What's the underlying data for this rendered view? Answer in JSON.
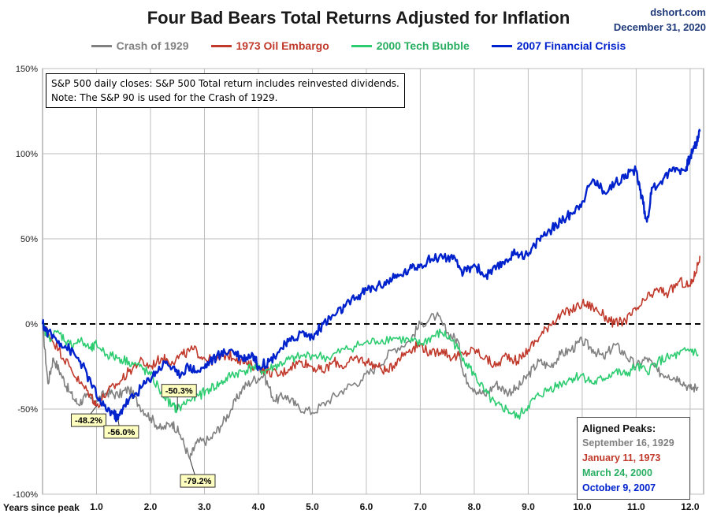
{
  "header": {
    "title": "Four Bad Bears Total Returns Adjusted for Inflation",
    "source": "dshort.com",
    "date": "December 31, 2020"
  },
  "note": {
    "line1": "S&P 500 daily closes: S&P 500 Total return includes reinvested dividends.",
    "line2": "Note: The S&P 90 is used for the Crash of 1929."
  },
  "peaks": {
    "title": "Aligned Peaks:",
    "items": [
      "September 16, 1929",
      "January 11, 1973",
      "March 24, 2000",
      "October 9, 2007"
    ]
  },
  "chart_data": {
    "type": "line",
    "title": "Four Bad Bears Total Returns Adjusted for Inflation",
    "xlabel": "Years since peak",
    "ylabel": "",
    "xlim": [
      0,
      12.25
    ],
    "ylim": [
      -100,
      150
    ],
    "x_ticks": [
      "1.0",
      "2.0",
      "3.0",
      "4.0",
      "5.0",
      "6.0",
      "7.0",
      "8.0",
      "9.0",
      "10.0",
      "11.0",
      "12.0"
    ],
    "y_ticks": [
      "150%",
      "100%",
      "50%",
      "0%",
      "-50%",
      "-100%"
    ],
    "y_tick_values": [
      150,
      100,
      50,
      0,
      -50,
      -100
    ],
    "grid": true,
    "legend_position": "top",
    "reference_line": 0,
    "series": [
      {
        "name": "Crash of 1929",
        "color": "#808080",
        "points": [
          [
            0,
            0
          ],
          [
            0.1,
            -35
          ],
          [
            0.2,
            -20
          ],
          [
            0.35,
            -30
          ],
          [
            0.5,
            -40
          ],
          [
            0.65,
            -47
          ],
          [
            0.8,
            -43
          ],
          [
            1.0,
            -45
          ],
          [
            1.2,
            -40
          ],
          [
            1.4,
            -42
          ],
          [
            1.6,
            -38
          ],
          [
            1.8,
            -48
          ],
          [
            2.0,
            -55
          ],
          [
            2.2,
            -62
          ],
          [
            2.4,
            -58
          ],
          [
            2.55,
            -65
          ],
          [
            2.73,
            -79.2
          ],
          [
            2.85,
            -70
          ],
          [
            3.1,
            -68
          ],
          [
            3.3,
            -60
          ],
          [
            3.5,
            -50
          ],
          [
            3.7,
            -38
          ],
          [
            3.9,
            -33
          ],
          [
            4.1,
            -30
          ],
          [
            4.3,
            -45
          ],
          [
            4.5,
            -42
          ],
          [
            4.7,
            -48
          ],
          [
            5.0,
            -52
          ],
          [
            5.3,
            -45
          ],
          [
            5.6,
            -38
          ],
          [
            5.9,
            -33
          ],
          [
            6.2,
            -25
          ],
          [
            6.5,
            -15
          ],
          [
            6.8,
            -10
          ],
          [
            7.0,
            0
          ],
          [
            7.3,
            5
          ],
          [
            7.5,
            -5
          ],
          [
            7.7,
            -10
          ],
          [
            7.8,
            -30
          ],
          [
            8.0,
            -38
          ],
          [
            8.2,
            -42
          ],
          [
            8.4,
            -35
          ],
          [
            8.6,
            -40
          ],
          [
            8.8,
            -38
          ],
          [
            9.0,
            -30
          ],
          [
            9.2,
            -22
          ],
          [
            9.4,
            -25
          ],
          [
            9.6,
            -18
          ],
          [
            9.8,
            -15
          ],
          [
            10.0,
            -10
          ],
          [
            10.2,
            -15
          ],
          [
            10.4,
            -20
          ],
          [
            10.6,
            -12
          ],
          [
            10.8,
            -18
          ],
          [
            11.0,
            -25
          ],
          [
            11.2,
            -20
          ],
          [
            11.4,
            -28
          ],
          [
            11.6,
            -30
          ],
          [
            11.8,
            -32
          ],
          [
            12.0,
            -38
          ],
          [
            12.15,
            -37
          ]
        ]
      },
      {
        "name": "1973 Oil Embargo",
        "color": "#c0392b",
        "points": [
          [
            0,
            0
          ],
          [
            0.1,
            -5
          ],
          [
            0.3,
            -15
          ],
          [
            0.5,
            -25
          ],
          [
            0.7,
            -35
          ],
          [
            0.9,
            -42
          ],
          [
            1.0,
            -48.2
          ],
          [
            1.2,
            -40
          ],
          [
            1.4,
            -35
          ],
          [
            1.6,
            -28
          ],
          [
            1.8,
            -22
          ],
          [
            2.0,
            -25
          ],
          [
            2.2,
            -20
          ],
          [
            2.4,
            -22
          ],
          [
            2.6,
            -18
          ],
          [
            2.8,
            -15
          ],
          [
            3.0,
            -20
          ],
          [
            3.2,
            -22
          ],
          [
            3.4,
            -18
          ],
          [
            3.6,
            -20
          ],
          [
            3.8,
            -24
          ],
          [
            4.0,
            -25
          ],
          [
            4.2,
            -28
          ],
          [
            4.4,
            -30
          ],
          [
            4.6,
            -25
          ],
          [
            4.8,
            -22
          ],
          [
            5.0,
            -25
          ],
          [
            5.2,
            -28
          ],
          [
            5.4,
            -22
          ],
          [
            5.6,
            -25
          ],
          [
            5.8,
            -20
          ],
          [
            6.0,
            -22
          ],
          [
            6.2,
            -25
          ],
          [
            6.4,
            -28
          ],
          [
            6.6,
            -20
          ],
          [
            6.8,
            -15
          ],
          [
            7.0,
            -12
          ],
          [
            7.2,
            -18
          ],
          [
            7.4,
            -15
          ],
          [
            7.6,
            -20
          ],
          [
            7.8,
            -18
          ],
          [
            8.0,
            -15
          ],
          [
            8.2,
            -20
          ],
          [
            8.4,
            -25
          ],
          [
            8.6,
            -18
          ],
          [
            8.8,
            -22
          ],
          [
            9.0,
            -15
          ],
          [
            9.2,
            -8
          ],
          [
            9.4,
            0
          ],
          [
            9.6,
            5
          ],
          [
            9.8,
            8
          ],
          [
            10.0,
            12
          ],
          [
            10.2,
            10
          ],
          [
            10.4,
            5
          ],
          [
            10.6,
            0
          ],
          [
            10.8,
            2
          ],
          [
            11.0,
            8
          ],
          [
            11.2,
            15
          ],
          [
            11.4,
            20
          ],
          [
            11.6,
            18
          ],
          [
            11.8,
            25
          ],
          [
            12.0,
            22
          ],
          [
            12.1,
            30
          ],
          [
            12.18,
            40
          ]
        ]
      },
      {
        "name": "2000 Tech Bubble",
        "color": "#2ecc71",
        "points": [
          [
            0,
            0
          ],
          [
            0.1,
            -8
          ],
          [
            0.3,
            -5
          ],
          [
            0.5,
            -12
          ],
          [
            0.7,
            -10
          ],
          [
            0.9,
            -15
          ],
          [
            1.0,
            -12
          ],
          [
            1.2,
            -18
          ],
          [
            1.4,
            -20
          ],
          [
            1.6,
            -22
          ],
          [
            1.8,
            -25
          ],
          [
            2.0,
            -30
          ],
          [
            2.2,
            -40
          ],
          [
            2.4,
            -48
          ],
          [
            2.5,
            -50.3
          ],
          [
            2.7,
            -45
          ],
          [
            2.9,
            -42
          ],
          [
            3.1,
            -38
          ],
          [
            3.3,
            -35
          ],
          [
            3.5,
            -30
          ],
          [
            3.7,
            -28
          ],
          [
            3.9,
            -25
          ],
          [
            4.1,
            -28
          ],
          [
            4.3,
            -25
          ],
          [
            4.5,
            -22
          ],
          [
            4.7,
            -20
          ],
          [
            5.0,
            -18
          ],
          [
            5.3,
            -20
          ],
          [
            5.6,
            -15
          ],
          [
            5.9,
            -12
          ],
          [
            6.2,
            -10
          ],
          [
            6.5,
            -8
          ],
          [
            6.8,
            -10
          ],
          [
            7.0,
            -12
          ],
          [
            7.2,
            -8
          ],
          [
            7.4,
            -5
          ],
          [
            7.6,
            -10
          ],
          [
            7.8,
            -20
          ],
          [
            8.0,
            -30
          ],
          [
            8.2,
            -40
          ],
          [
            8.4,
            -48
          ],
          [
            8.6,
            -50
          ],
          [
            8.8,
            -55
          ],
          [
            9.0,
            -48
          ],
          [
            9.2,
            -42
          ],
          [
            9.4,
            -38
          ],
          [
            9.6,
            -35
          ],
          [
            9.8,
            -32
          ],
          [
            10.0,
            -30
          ],
          [
            10.2,
            -35
          ],
          [
            10.4,
            -32
          ],
          [
            10.6,
            -28
          ],
          [
            10.8,
            -30
          ],
          [
            11.0,
            -25
          ],
          [
            11.2,
            -28
          ],
          [
            11.4,
            -22
          ],
          [
            11.6,
            -20
          ],
          [
            11.8,
            -18
          ],
          [
            12.0,
            -15
          ],
          [
            12.15,
            -18
          ]
        ]
      },
      {
        "name": "2007 Financial Crisis",
        "color": "#0022cc",
        "points": [
          [
            0,
            0
          ],
          [
            0.1,
            -5
          ],
          [
            0.3,
            -10
          ],
          [
            0.5,
            -15
          ],
          [
            0.7,
            -22
          ],
          [
            0.9,
            -35
          ],
          [
            1.1,
            -48
          ],
          [
            1.3,
            -52
          ],
          [
            1.4,
            -56
          ],
          [
            1.5,
            -48
          ],
          [
            1.7,
            -42
          ],
          [
            1.9,
            -35
          ],
          [
            2.1,
            -28
          ],
          [
            2.3,
            -22
          ],
          [
            2.5,
            -30
          ],
          [
            2.7,
            -25
          ],
          [
            2.9,
            -28
          ],
          [
            3.1,
            -22
          ],
          [
            3.3,
            -18
          ],
          [
            3.5,
            -15
          ],
          [
            3.7,
            -20
          ],
          [
            3.9,
            -18
          ],
          [
            4.0,
            -25
          ],
          [
            4.2,
            -22
          ],
          [
            4.4,
            -15
          ],
          [
            4.6,
            -10
          ],
          [
            4.8,
            -5
          ],
          [
            5.0,
            -8
          ],
          [
            5.2,
            0
          ],
          [
            5.4,
            5
          ],
          [
            5.6,
            10
          ],
          [
            5.8,
            15
          ],
          [
            6.0,
            20
          ],
          [
            6.2,
            22
          ],
          [
            6.4,
            25
          ],
          [
            6.6,
            28
          ],
          [
            6.8,
            32
          ],
          [
            7.0,
            35
          ],
          [
            7.2,
            38
          ],
          [
            7.4,
            40
          ],
          [
            7.6,
            38
          ],
          [
            7.8,
            30
          ],
          [
            8.0,
            35
          ],
          [
            8.2,
            28
          ],
          [
            8.4,
            32
          ],
          [
            8.6,
            38
          ],
          [
            8.8,
            42
          ],
          [
            9.0,
            40
          ],
          [
            9.2,
            50
          ],
          [
            9.4,
            55
          ],
          [
            9.6,
            60
          ],
          [
            9.8,
            65
          ],
          [
            10.0,
            72
          ],
          [
            10.2,
            85
          ],
          [
            10.4,
            78
          ],
          [
            10.6,
            82
          ],
          [
            10.8,
            88
          ],
          [
            11.0,
            90
          ],
          [
            11.1,
            75
          ],
          [
            11.2,
            60
          ],
          [
            11.3,
            80
          ],
          [
            11.5,
            85
          ],
          [
            11.7,
            92
          ],
          [
            11.9,
            90
          ],
          [
            12.0,
            98
          ],
          [
            12.1,
            105
          ],
          [
            12.18,
            113
          ]
        ]
      }
    ],
    "annotations": [
      {
        "label": "-48.2%",
        "x": 1.0,
        "y": -48.2,
        "color": "#c0392b"
      },
      {
        "label": "-56.0%",
        "x": 1.4,
        "y": -56.0,
        "color": "#0022cc"
      },
      {
        "label": "-50.3%",
        "x": 2.5,
        "y": -50.3,
        "color": "#2ecc71"
      },
      {
        "label": "-79.2%",
        "x": 2.73,
        "y": -79.2,
        "color": "#808080"
      }
    ]
  }
}
